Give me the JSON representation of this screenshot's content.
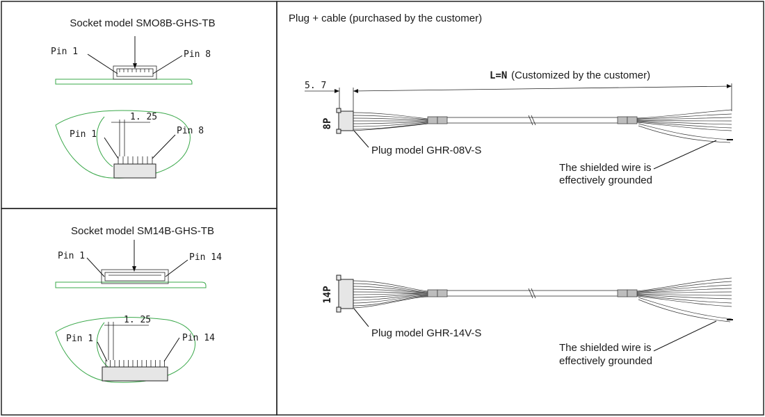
{
  "top_left": {
    "title": "Socket model SMO8B-GHS-TB",
    "pin_first": "Pin 1",
    "pin_last": "Pin 8",
    "pitch": "1. 25",
    "pin_first_2": "Pin 1",
    "pin_last_2": "Pin 8"
  },
  "bottom_left": {
    "title": "Socket model SM14B-GHS-TB",
    "pin_first": "Pin 1",
    "pin_last": "Pin 14",
    "pitch": "1. 25",
    "pin_first_2": "Pin 1",
    "pin_last_2": "Pin 14"
  },
  "right": {
    "title": "Plug + cable (purchased by the customer)",
    "offset_dim": "5. 7",
    "length_dim": "L=N",
    "length_note": "(Customized by the customer)",
    "cable_8p": {
      "pin_count": "8P",
      "plug_label": "Plug model GHR-08V-S",
      "shield_line1": "The shielded wire is",
      "shield_line2": "effectively grounded"
    },
    "cable_14p": {
      "pin_count": "14P",
      "plug_label": "Plug model GHR-14V-S",
      "shield_line1": "The shielded wire is",
      "shield_line2": "effectively grounded"
    }
  },
  "colors": {
    "pcb_outline": "#3aa84a",
    "line": "#111111"
  }
}
